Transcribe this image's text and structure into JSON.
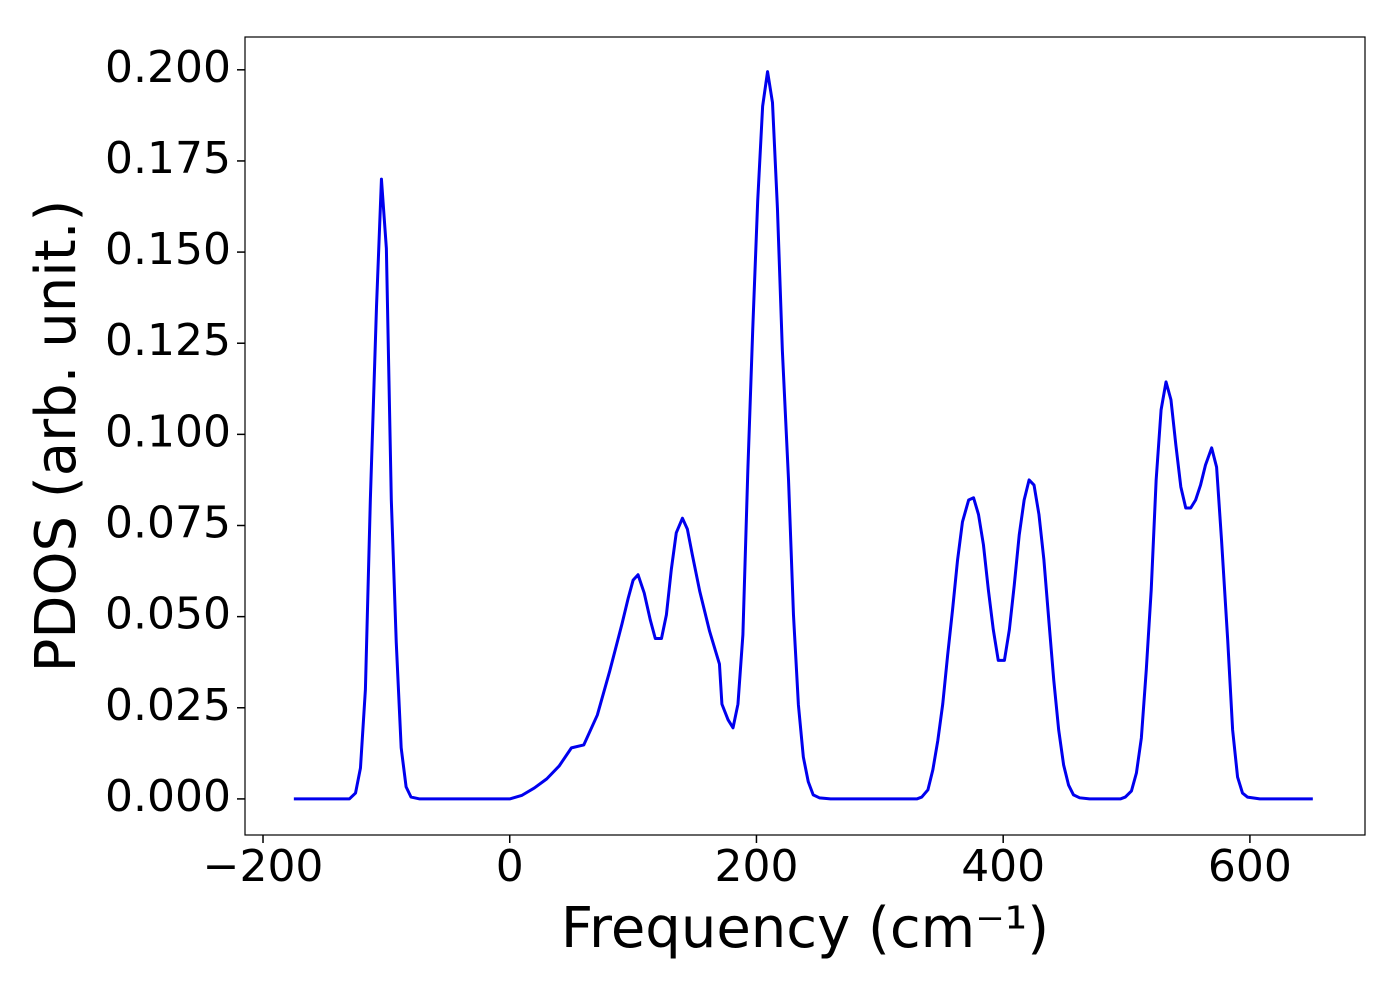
{
  "chart_data": {
    "type": "line",
    "xlabel": "Frequency (cm⁻¹)",
    "ylabel": "PDOS (arb. unit.)",
    "x": [
      -175,
      -130,
      -125,
      -121,
      -117,
      -113,
      -108,
      -104,
      -100,
      -96,
      -92,
      -88,
      -84,
      -80,
      -73,
      0,
      10,
      20,
      30,
      40,
      50,
      60,
      71,
      81,
      91,
      96,
      100,
      104,
      109,
      114,
      118,
      123,
      127,
      131,
      135,
      140,
      144,
      148,
      154,
      162,
      170,
      172,
      177,
      181,
      185,
      189,
      193,
      197,
      201,
      205,
      209,
      213,
      217,
      221,
      226,
      230,
      234,
      238,
      242,
      246,
      251,
      260,
      330,
      334,
      339,
      343,
      347,
      351,
      355,
      359,
      363,
      367,
      372,
      376,
      380,
      384,
      388,
      392,
      396,
      401,
      405,
      409,
      413,
      417,
      421,
      425,
      429,
      433,
      437,
      441,
      445,
      449,
      453,
      457,
      462,
      470,
      495,
      499,
      504,
      508,
      512,
      516,
      520,
      524,
      528,
      532,
      536,
      540,
      544,
      548,
      552,
      556,
      560,
      564,
      569,
      573,
      577,
      582,
      586,
      590,
      594,
      598,
      608,
      651
    ],
    "series": [
      {
        "name": "PDOS",
        "color": "#0000ee",
        "values": [
          0,
          0,
          0.0016,
          0.0085,
          0.03,
          0.082,
          0.135,
          0.17,
          0.151,
          0.082,
          0.043,
          0.014,
          0.0033,
          0.0005,
          0,
          0,
          0.001,
          0.003,
          0.0055,
          0.009,
          0.014,
          0.0148,
          0.023,
          0.035,
          0.048,
          0.055,
          0.06,
          0.0615,
          0.0565,
          0.049,
          0.044,
          0.044,
          0.0505,
          0.063,
          0.073,
          0.077,
          0.074,
          0.067,
          0.057,
          0.046,
          0.037,
          0.026,
          0.0217,
          0.0195,
          0.026,
          0.045,
          0.09,
          0.129,
          0.164,
          0.19,
          0.1995,
          0.191,
          0.162,
          0.123,
          0.0875,
          0.0505,
          0.0258,
          0.0115,
          0.0047,
          0.0011,
          0.0003,
          0,
          0,
          0.0005,
          0.0025,
          0.008,
          0.016,
          0.026,
          0.0395,
          0.052,
          0.0655,
          0.076,
          0.082,
          0.0826,
          0.078,
          0.0697,
          0.0573,
          0.0464,
          0.038,
          0.038,
          0.0464,
          0.0587,
          0.0724,
          0.082,
          0.0875,
          0.0861,
          0.078,
          0.0656,
          0.049,
          0.0326,
          0.0189,
          0.0093,
          0.0038,
          0.0011,
          0.0003,
          0,
          0,
          0.0005,
          0.0022,
          0.0071,
          0.0167,
          0.0354,
          0.0573,
          0.0875,
          0.1067,
          0.1144,
          0.1095,
          0.097,
          0.0856,
          0.0798,
          0.0798,
          0.082,
          0.0861,
          0.0916,
          0.0963,
          0.091,
          0.071,
          0.0436,
          0.0189,
          0.006,
          0.0016,
          0.0005,
          0,
          0
        ]
      }
    ],
    "xlim": [
      -214.6,
      693.3
    ],
    "ylim": [
      -0.0099,
      0.209
    ],
    "xticks": [
      {
        "value": -200,
        "label": "−200"
      },
      0,
      200,
      400,
      600
    ],
    "yticks": [
      {
        "value": 0,
        "label": "0.000"
      },
      {
        "value": 0.025,
        "label": "0.025"
      },
      {
        "value": 0.05,
        "label": "0.050"
      },
      {
        "value": 0.075,
        "label": "0.075"
      },
      {
        "value": 0.1,
        "label": "0.100"
      },
      {
        "value": 0.125,
        "label": "0.125"
      },
      {
        "value": 0.15,
        "label": "0.150"
      },
      {
        "value": 0.175,
        "label": "0.175"
      },
      {
        "value": 0.2,
        "label": "0.200"
      }
    ],
    "grid": false
  }
}
